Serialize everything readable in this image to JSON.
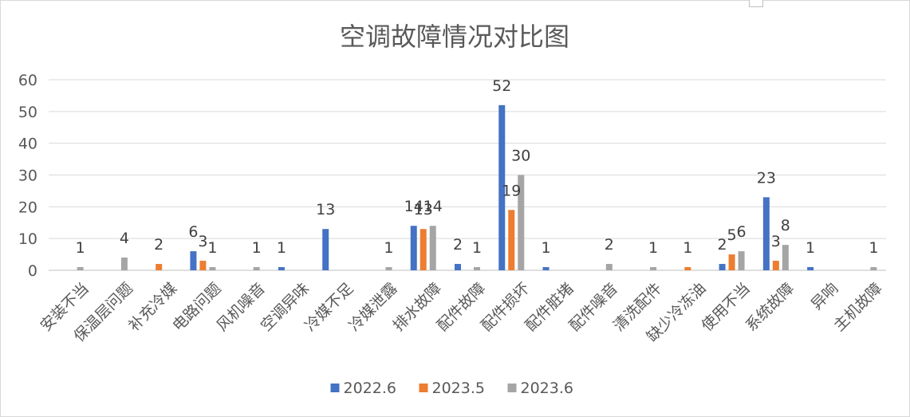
{
  "chart_data": {
    "type": "bar",
    "title": "空调故障情况对比图",
    "xlabel": "",
    "ylabel": "",
    "ylim": [
      0,
      60
    ],
    "yticks": [
      0,
      10,
      20,
      30,
      40,
      50,
      60
    ],
    "grid": true,
    "legend_position": "bottom",
    "categories": [
      "安装不当",
      "保温层问题",
      "补充冷媒",
      "电路问题",
      "风机噪音",
      "空调异味",
      "冷媒不足",
      "冷媒泄露",
      "排水故障",
      "配件故障",
      "配件损坏",
      "配件脏堵",
      "配件噪音",
      "清洗配件",
      "缺少冷冻油",
      "使用不当",
      "系统故障",
      "异响",
      "主机故障"
    ],
    "series": [
      {
        "name": "2022.6",
        "color": "#4472c4",
        "values": [
          null,
          null,
          null,
          6,
          null,
          1,
          13,
          null,
          14,
          2,
          52,
          1,
          null,
          null,
          null,
          2,
          23,
          1,
          null
        ]
      },
      {
        "name": "2023.5",
        "color": "#ed7d31",
        "values": [
          null,
          null,
          2,
          3,
          null,
          null,
          null,
          null,
          13,
          null,
          19,
          null,
          null,
          null,
          1,
          5,
          3,
          null,
          null
        ]
      },
      {
        "name": "2023.6",
        "color": "#a5a5a5",
        "values": [
          1,
          4,
          null,
          1,
          1,
          null,
          null,
          1,
          14,
          1,
          30,
          null,
          2,
          1,
          null,
          6,
          8,
          null,
          1
        ]
      }
    ]
  }
}
